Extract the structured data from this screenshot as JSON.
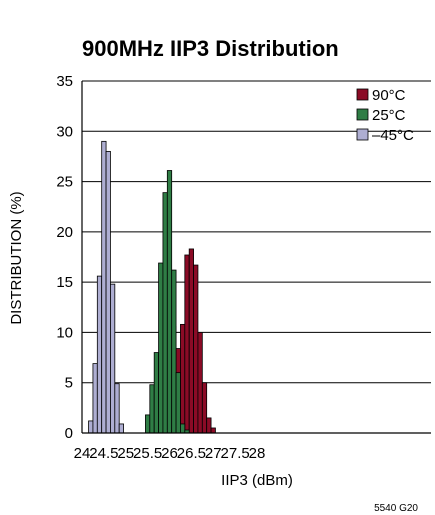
{
  "chart_data": {
    "type": "bar",
    "title": "900MHz IIP3 Distribution",
    "xlabel": "IIP3 (dBm)",
    "ylabel": "DISTRIBUTION (%)",
    "xlim": [
      24,
      28
    ],
    "ylim": [
      0,
      35
    ],
    "x_ticks": [
      "24",
      "24.5",
      "25",
      "25.5",
      "26",
      "26.5",
      "27",
      "27.5",
      "28"
    ],
    "y_ticks": [
      "0",
      "5",
      "10",
      "15",
      "20",
      "25",
      "30",
      "35"
    ],
    "bin_width": 0.1,
    "grid": "horizontal",
    "legend_position": "top-right",
    "series": [
      {
        "name": "90°C",
        "color": "#8b0b26",
        "bins": [
          {
            "x": 26.1,
            "y": 10.6
          },
          {
            "x": 26.2,
            "y": 8.4
          },
          {
            "x": 26.3,
            "y": 10.8
          },
          {
            "x": 26.4,
            "y": 17.7
          },
          {
            "x": 26.5,
            "y": 18.3
          },
          {
            "x": 26.6,
            "y": 16.7
          },
          {
            "x": 26.7,
            "y": 10.0
          },
          {
            "x": 26.8,
            "y": 5.0
          },
          {
            "x": 26.9,
            "y": 1.5
          },
          {
            "x": 27.0,
            "y": 0.5
          }
        ]
      },
      {
        "name": "25°C",
        "color": "#2f7d45",
        "bins": [
          {
            "x": 25.5,
            "y": 1.8
          },
          {
            "x": 25.6,
            "y": 4.8
          },
          {
            "x": 25.7,
            "y": 8.0
          },
          {
            "x": 25.8,
            "y": 16.9
          },
          {
            "x": 25.9,
            "y": 23.9
          },
          {
            "x": 26.0,
            "y": 26.1
          },
          {
            "x": 26.1,
            "y": 16.2
          },
          {
            "x": 26.2,
            "y": 6.0
          },
          {
            "x": 26.3,
            "y": 0.9
          },
          {
            "x": 26.4,
            "y": 0.3
          }
        ]
      },
      {
        "name": "–45°C",
        "color": "#aeaed2",
        "bins": [
          {
            "x": 24.2,
            "y": 1.2
          },
          {
            "x": 24.3,
            "y": 6.9
          },
          {
            "x": 24.4,
            "y": 15.6
          },
          {
            "x": 24.5,
            "y": 29.0
          },
          {
            "x": 24.6,
            "y": 28.0
          },
          {
            "x": 24.7,
            "y": 14.8
          },
          {
            "x": 24.8,
            "y": 4.9
          },
          {
            "x": 24.9,
            "y": 0.9
          }
        ]
      }
    ],
    "figure_id": "5540 G20"
  }
}
